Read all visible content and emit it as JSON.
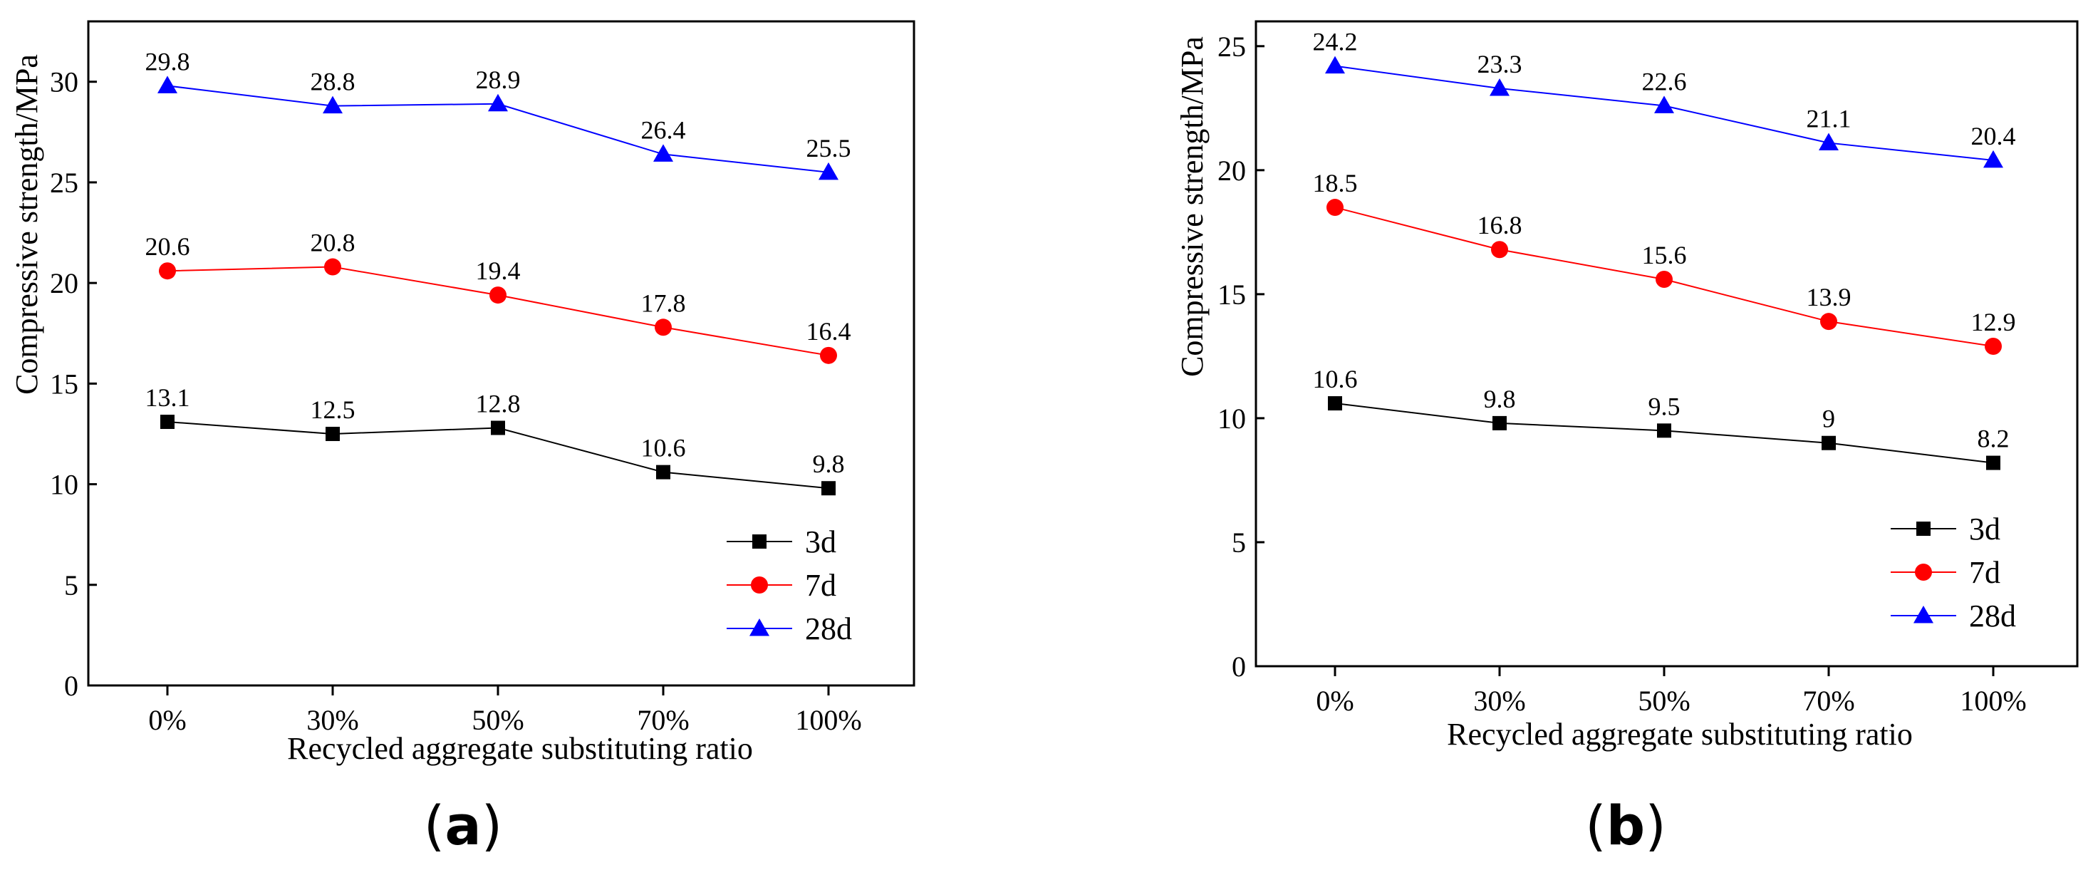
{
  "chart_data": [
    {
      "type": "line",
      "panel_label": "a",
      "xlabel": "Recycled aggregate substituting ratio",
      "ylabel": "Compressive strength/MPa",
      "categories": [
        "0%",
        "30%",
        "50%",
        "70%",
        "100%"
      ],
      "ylim": [
        0,
        33
      ],
      "yticks": [
        0,
        5,
        10,
        15,
        20,
        25,
        30
      ],
      "legend_position": "bottom-right",
      "series": [
        {
          "name": "3d",
          "color": "#000000",
          "marker": "square",
          "values": [
            13.1,
            12.5,
            12.8,
            10.6,
            9.8
          ],
          "labels": [
            "13.1",
            "12.5",
            "12.8",
            "10.6",
            "9.8"
          ]
        },
        {
          "name": "7d",
          "color": "#ff0000",
          "marker": "circle",
          "values": [
            20.6,
            20.8,
            19.4,
            17.8,
            16.4
          ],
          "labels": [
            "20.6",
            "20.8",
            "19.4",
            "17.8",
            "16.4"
          ]
        },
        {
          "name": "28d",
          "color": "#0000ff",
          "marker": "triangle",
          "values": [
            29.8,
            28.8,
            28.9,
            26.4,
            25.5
          ],
          "labels": [
            "29.8",
            "28.8",
            "28.9",
            "26.4",
            "25.5"
          ]
        }
      ]
    },
    {
      "type": "line",
      "panel_label": "b",
      "xlabel": "Recycled aggregate substituting ratio",
      "ylabel": "Compressive strength/MPa",
      "categories": [
        "0%",
        "30%",
        "50%",
        "70%",
        "100%"
      ],
      "ylim": [
        0,
        26
      ],
      "yticks": [
        0,
        5,
        10,
        15,
        20,
        25
      ],
      "legend_position": "bottom-right",
      "series": [
        {
          "name": "3d",
          "color": "#000000",
          "marker": "square",
          "values": [
            10.6,
            9.8,
            9.5,
            9.0,
            8.2
          ],
          "labels": [
            "10.6",
            "9.8",
            "9.5",
            "9",
            "8.2"
          ]
        },
        {
          "name": "7d",
          "color": "#ff0000",
          "marker": "circle",
          "values": [
            18.5,
            16.8,
            15.6,
            13.9,
            12.9
          ],
          "labels": [
            "18.5",
            "16.8",
            "15.6",
            "13.9",
            "12.9"
          ]
        },
        {
          "name": "28d",
          "color": "#0000ff",
          "marker": "triangle",
          "values": [
            24.2,
            23.3,
            22.6,
            21.1,
            20.4
          ],
          "labels": [
            "24.2",
            "23.3",
            "22.6",
            "21.1",
            "20.4"
          ]
        }
      ]
    }
  ]
}
